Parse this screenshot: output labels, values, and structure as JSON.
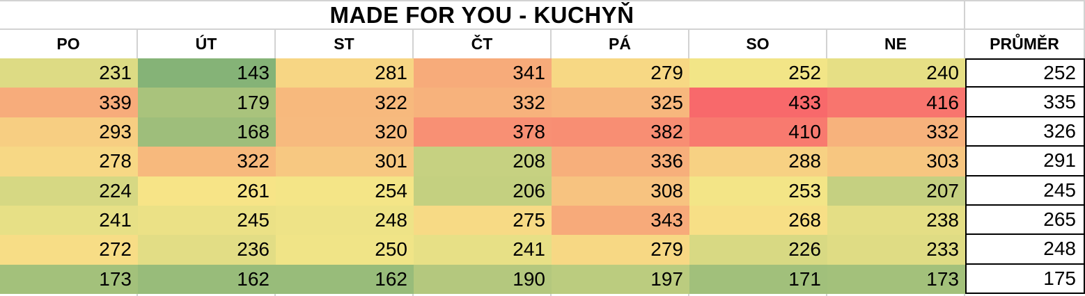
{
  "chart_data": {
    "type": "heatmap",
    "title": "MADE FOR YOU - KUCHYŇ",
    "columns": [
      "PO",
      "ÚT",
      "ST",
      "ČT",
      "PÁ",
      "SO",
      "NE"
    ],
    "average_label": "PRŮMĚR",
    "rows": [
      {
        "values": [
          231,
          143,
          281,
          341,
          279,
          252,
          240
        ],
        "average": 252
      },
      {
        "values": [
          339,
          179,
          322,
          332,
          325,
          433,
          416
        ],
        "average": 335
      },
      {
        "values": [
          293,
          168,
          320,
          378,
          382,
          410,
          332
        ],
        "average": 326
      },
      {
        "values": [
          278,
          322,
          301,
          208,
          336,
          288,
          303
        ],
        "average": 291
      },
      {
        "values": [
          224,
          261,
          254,
          206,
          308,
          253,
          207
        ],
        "average": 245
      },
      {
        "values": [
          241,
          245,
          248,
          275,
          343,
          268,
          238
        ],
        "average": 265
      },
      {
        "values": [
          272,
          236,
          250,
          241,
          279,
          226,
          233
        ],
        "average": 248
      },
      {
        "values": [
          173,
          162,
          162,
          190,
          197,
          171,
          173
        ],
        "average": 175
      }
    ],
    "color_scale": {
      "style": "3-color-scale",
      "min_value": 143,
      "mid_value": 257.5,
      "max_value": 433,
      "min_color": "#85B377",
      "mid_color": "#F7E788",
      "max_color": "#F8696B"
    },
    "colors": {
      "gridline": "#D2D2D2",
      "average_border": "#000000",
      "background": "#FFFFFF",
      "text": "#000000"
    },
    "layout": {
      "legend": "none",
      "grid": "excel-gridlines",
      "value_alignment": "right",
      "header_alignment": "center"
    }
  }
}
